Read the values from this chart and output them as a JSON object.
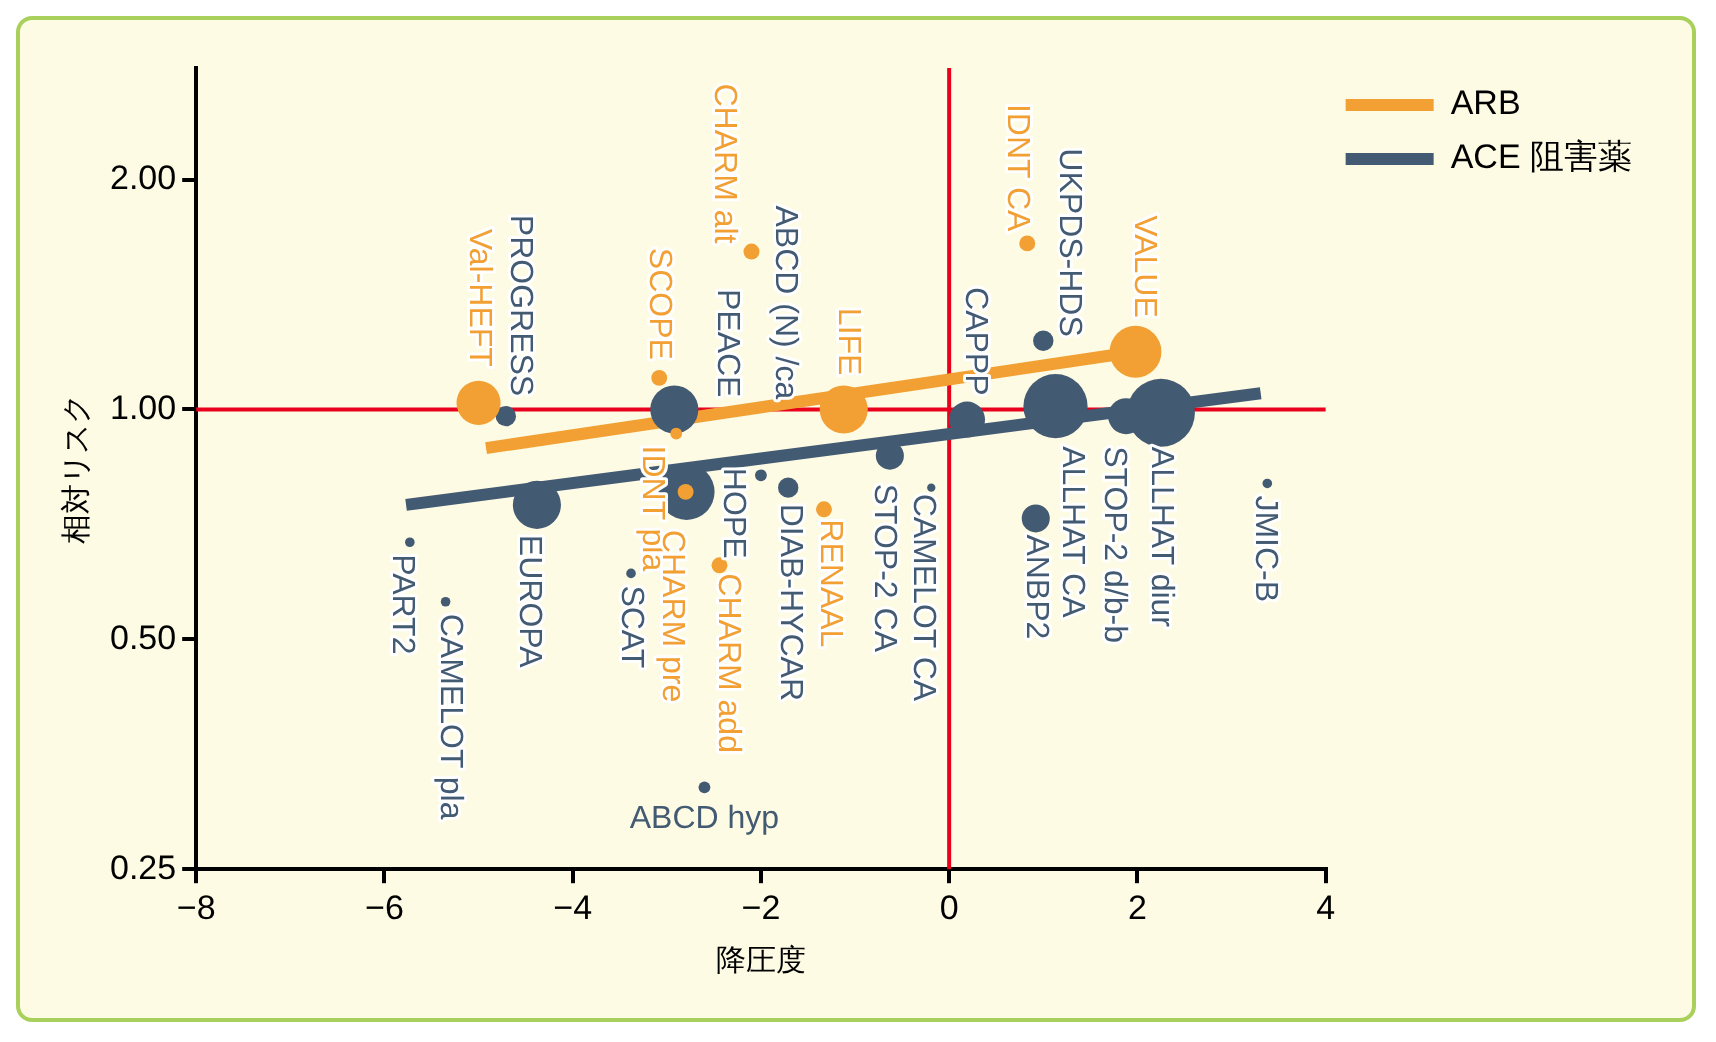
{
  "chart_data": {
    "type": "bubble",
    "xlabel": "降圧度",
    "ylabel": "相対リスク",
    "log": "y",
    "legend": "top right",
    "xlim": [
      -8,
      4
    ],
    "xticks": [
      {
        "value": -8,
        "label": "−8"
      },
      {
        "value": -6,
        "label": "−6"
      },
      {
        "value": -4,
        "label": "−4"
      },
      {
        "value": -2,
        "label": "−2"
      },
      0,
      2,
      4
    ],
    "ylim": [
      0.25,
      2.8
    ],
    "yticks": [
      {
        "value": 0.25,
        "label": "0.25"
      },
      {
        "value": 0.5,
        "label": "0.50"
      },
      {
        "value": 1,
        "label": "1.00"
      },
      {
        "value": 2,
        "label": "2.00"
      }
    ],
    "ref_lines": [
      {
        "axis": "x",
        "value": 0,
        "color": "#e8001c"
      },
      {
        "axis": "y",
        "value": 1,
        "color": "#e8001c"
      }
    ],
    "series": [
      {
        "name": "ARB",
        "color": "#f2a033",
        "x": [
          -5.0,
          -3.08,
          -2.1,
          -2.9,
          -2.8,
          -2.44,
          -1.33,
          -1.12,
          0.83,
          1.98
        ],
        "values": [
          1.02,
          1.1,
          1.61,
          0.93,
          0.78,
          0.625,
          0.74,
          1.0,
          1.65,
          1.19
        ],
        "sizes": [
          0.42,
          0.055,
          0.055,
          0.03,
          0.055,
          0.055,
          0.055,
          0.5,
          0.055,
          0.58
        ]
      },
      {
        "name": "ACE 阻害薬",
        "color": "#435a73",
        "x": [
          -4.71,
          -2.92,
          -2.0,
          -2.79,
          -1.71,
          -3.38,
          -4.38,
          -5.73,
          -5.35,
          -2.6,
          -0.63,
          -0.19,
          0.19,
          1.0,
          1.13,
          1.88,
          2.25,
          0.92,
          3.38
        ],
        "values": [
          0.98,
          1.0,
          0.82,
          0.78,
          0.79,
          0.61,
          0.75,
          0.67,
          0.56,
          0.32,
          0.87,
          0.79,
          0.97,
          1.23,
          1.01,
          0.98,
          0.99,
          0.72,
          0.8
        ],
        "sizes": [
          0.09,
          0.5,
          0.03,
          0.68,
          0.09,
          0.02,
          0.5,
          0.02,
          0.02,
          0.03,
          0.17,
          0.015,
          0.28,
          0.09,
          0.89,
          0.28,
          1,
          0.17,
          0.02
        ]
      },
      {
        "type": "line",
        "color": "#f2a033",
        "x": [
          -4.92,
          1.98
        ],
        "values": [
          0.89,
          1.19
        ]
      },
      {
        "type": "line",
        "color": "#435a73",
        "x": [
          -5.77,
          3.31
        ],
        "values": [
          0.75,
          1.05
        ]
      }
    ],
    "annotations": [
      {
        "text": "Val-HEFT",
        "x": -5.0,
        "y": 1.02
      },
      {
        "text": "SCOPE",
        "x": -3.08,
        "y": 1.1
      },
      {
        "text": "CHARM alt",
        "x": -2.1,
        "y": 1.61
      },
      {
        "text": "IDNT pla",
        "x": -2.9,
        "y": 0.93
      },
      {
        "text": "CHARM pre",
        "x": -2.8,
        "y": 0.78
      },
      {
        "text": "CHARM add",
        "x": -2.44,
        "y": 0.625
      },
      {
        "text": "RENAAL",
        "x": -1.33,
        "y": 0.74
      },
      {
        "text": "LIFE",
        "x": -1.12,
        "y": 1.0
      },
      {
        "text": "IDNT CA",
        "x": 0.83,
        "y": 1.65
      },
      {
        "text": "VALUE",
        "x": 1.98,
        "y": 1.19
      },
      {
        "text": "PROGRESS",
        "x": -4.71,
        "y": 0.98
      },
      {
        "text": "PEACE",
        "x": -2.92,
        "y": 1.0
      },
      {
        "text": "ABCD (N) /ca",
        "x": -2.0,
        "y": 0.82
      },
      {
        "text": "HOPE",
        "x": -2.79,
        "y": 0.78
      },
      {
        "text": "DIAB-HYCAR",
        "x": -1.71,
        "y": 0.79
      },
      {
        "text": "SCAT",
        "x": -3.38,
        "y": 0.61
      },
      {
        "text": "EUROPA",
        "x": -4.38,
        "y": 0.75
      },
      {
        "text": "PART2",
        "x": -5.73,
        "y": 0.67
      },
      {
        "text": "CAMELOT pla",
        "x": -5.35,
        "y": 0.56
      },
      {
        "text": "ABCD hyp",
        "x": -2.6,
        "y": 0.32
      },
      {
        "text": "STOP-2 CA",
        "x": -0.63,
        "y": 0.87
      },
      {
        "text": "CAMELOT CA",
        "x": -0.19,
        "y": 0.79
      },
      {
        "text": "CAPPP",
        "x": 0.19,
        "y": 0.97
      },
      {
        "text": "UKPDS-HDS",
        "x": 1.0,
        "y": 1.23
      },
      {
        "text": "ALLHAT CA",
        "x": 1.13,
        "y": 1.01
      },
      {
        "text": "STOP-2 d/b-b",
        "x": 1.88,
        "y": 0.98
      },
      {
        "text": "ALLHAT diur",
        "x": 2.25,
        "y": 0.99
      },
      {
        "text": "ANBP2",
        "x": 0.92,
        "y": 0.72
      },
      {
        "text": "JMIC-B",
        "x": 3.38,
        "y": 0.8
      }
    ]
  }
}
